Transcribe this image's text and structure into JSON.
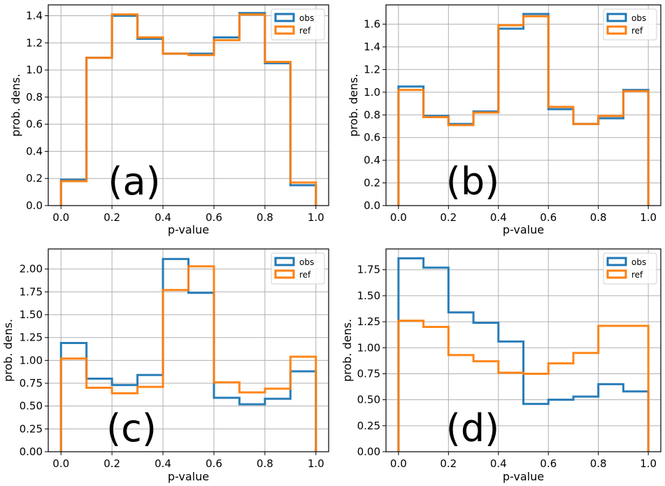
{
  "colors": {
    "obs": "#1f77b4",
    "ref": "#ff7f0e",
    "grid": "#b0b0b0"
  },
  "chart_data": [
    {
      "type": "histogram-step",
      "panel_label": "(a)",
      "xlabel": "p-value",
      "ylabel": "prob. dens.",
      "xlim": [
        -0.05,
        1.05
      ],
      "ylim": [
        0,
        1.48
      ],
      "xticks": [
        0.0,
        0.2,
        0.4,
        0.6,
        0.8,
        1.0
      ],
      "xtick_labels": [
        "0.0",
        "0.2",
        "0.4",
        "0.6",
        "0.8",
        "1.0"
      ],
      "yticks": [
        0.0,
        0.2,
        0.4,
        0.6,
        0.8,
        1.0,
        1.2,
        1.4
      ],
      "ytick_labels": [
        "0.0",
        "0.2",
        "0.4",
        "0.6",
        "0.8",
        "1.0",
        "1.2",
        "1.4"
      ],
      "bin_edges": [
        0.0,
        0.1,
        0.2,
        0.3,
        0.4,
        0.5,
        0.6,
        0.7,
        0.8,
        0.9,
        1.0
      ],
      "grid": true,
      "legend_position": "top-right",
      "series": [
        {
          "name": "obs",
          "values": [
            0.19,
            1.09,
            1.4,
            1.23,
            1.12,
            1.12,
            1.24,
            1.42,
            1.05,
            0.15
          ]
        },
        {
          "name": "ref",
          "values": [
            0.18,
            1.09,
            1.41,
            1.24,
            1.12,
            1.11,
            1.22,
            1.41,
            1.06,
            0.17
          ]
        }
      ]
    },
    {
      "type": "histogram-step",
      "panel_label": "(b)",
      "xlabel": "p-value",
      "ylabel": "prob. dens.",
      "xlim": [
        -0.05,
        1.05
      ],
      "ylim": [
        0,
        1.77
      ],
      "xticks": [
        0.0,
        0.2,
        0.4,
        0.6,
        0.8,
        1.0
      ],
      "xtick_labels": [
        "0.0",
        "0.2",
        "0.4",
        "0.6",
        "0.8",
        "1.0"
      ],
      "yticks": [
        0.0,
        0.2,
        0.4,
        0.6,
        0.8,
        1.0,
        1.2,
        1.4,
        1.6
      ],
      "ytick_labels": [
        "0.0",
        "0.2",
        "0.4",
        "0.6",
        "0.8",
        "1.0",
        "1.2",
        "1.4",
        "1.6"
      ],
      "bin_edges": [
        0.0,
        0.1,
        0.2,
        0.3,
        0.4,
        0.5,
        0.6,
        0.7,
        0.8,
        0.9,
        1.0
      ],
      "grid": true,
      "legend_position": "top-right",
      "series": [
        {
          "name": "obs",
          "values": [
            1.05,
            0.79,
            0.72,
            0.83,
            1.56,
            1.69,
            0.85,
            0.72,
            0.77,
            1.02
          ]
        },
        {
          "name": "ref",
          "values": [
            1.02,
            0.78,
            0.71,
            0.82,
            1.59,
            1.67,
            0.87,
            0.72,
            0.79,
            1.01
          ]
        }
      ]
    },
    {
      "type": "histogram-step",
      "panel_label": "(c)",
      "xlabel": "p-value",
      "ylabel": "prob. dens.",
      "xlim": [
        -0.05,
        1.05
      ],
      "ylim": [
        0,
        2.22
      ],
      "xticks": [
        0.0,
        0.2,
        0.4,
        0.6,
        0.8,
        1.0
      ],
      "xtick_labels": [
        "0.0",
        "0.2",
        "0.4",
        "0.6",
        "0.8",
        "1.0"
      ],
      "yticks": [
        0.0,
        0.25,
        0.5,
        0.75,
        1.0,
        1.25,
        1.5,
        1.75,
        2.0
      ],
      "ytick_labels": [
        "0.00",
        "0.25",
        "0.50",
        "0.75",
        "1.00",
        "1.25",
        "1.50",
        "1.75",
        "2.00"
      ],
      "bin_edges": [
        0.0,
        0.1,
        0.2,
        0.3,
        0.4,
        0.5,
        0.6,
        0.7,
        0.8,
        0.9,
        1.0
      ],
      "grid": true,
      "legend_position": "top-right",
      "series": [
        {
          "name": "obs",
          "values": [
            1.19,
            0.8,
            0.73,
            0.84,
            2.11,
            1.74,
            0.59,
            0.52,
            0.58,
            0.88
          ]
        },
        {
          "name": "ref",
          "values": [
            1.02,
            0.7,
            0.64,
            0.71,
            1.77,
            2.03,
            0.76,
            0.65,
            0.69,
            1.04
          ]
        }
      ]
    },
    {
      "type": "histogram-step",
      "panel_label": "(d)",
      "xlabel": "p-value",
      "ylabel": "prob. dens.",
      "xlim": [
        -0.05,
        1.05
      ],
      "ylim": [
        0,
        1.95
      ],
      "xticks": [
        0.0,
        0.2,
        0.4,
        0.6,
        0.8,
        1.0
      ],
      "xtick_labels": [
        "0.0",
        "0.2",
        "0.4",
        "0.6",
        "0.8",
        "1.0"
      ],
      "yticks": [
        0.0,
        0.25,
        0.5,
        0.75,
        1.0,
        1.25,
        1.5,
        1.75
      ],
      "ytick_labels": [
        "0.00",
        "0.25",
        "0.50",
        "0.75",
        "1.00",
        "1.25",
        "1.50",
        "1.75"
      ],
      "bin_edges": [
        0.0,
        0.1,
        0.2,
        0.3,
        0.4,
        0.5,
        0.6,
        0.7,
        0.8,
        0.9,
        1.0
      ],
      "grid": true,
      "legend_position": "top-right",
      "series": [
        {
          "name": "obs",
          "values": [
            1.86,
            1.77,
            1.34,
            1.24,
            1.06,
            0.46,
            0.5,
            0.53,
            0.65,
            0.58
          ]
        },
        {
          "name": "ref",
          "values": [
            1.26,
            1.2,
            0.93,
            0.87,
            0.76,
            0.75,
            0.85,
            0.95,
            1.21,
            1.21
          ]
        }
      ]
    }
  ]
}
